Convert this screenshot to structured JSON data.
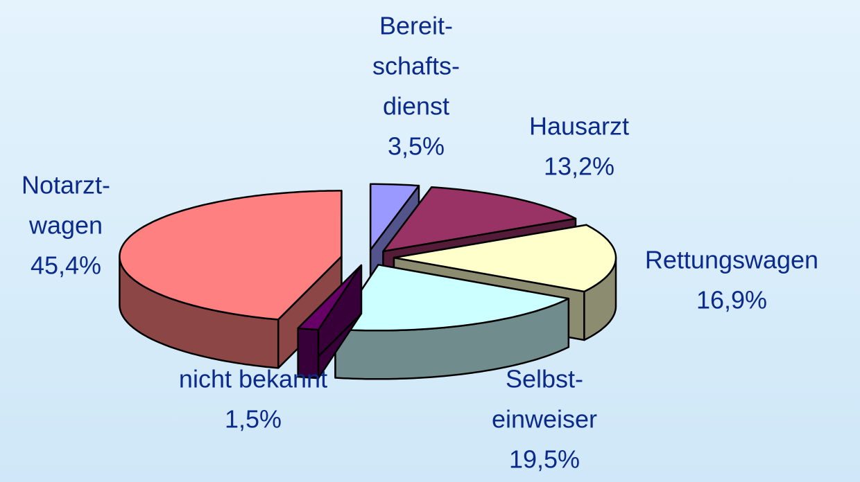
{
  "chart_data": {
    "type": "pie3d",
    "categories": [
      [
        "Bereit-",
        "schafts-",
        "dienst"
      ],
      [
        "Hausarzt"
      ],
      [
        "Rettungswagen"
      ],
      [
        "Selbst-",
        "einweiser"
      ],
      [
        "nicht bekannt"
      ],
      [
        "Notarzt-",
        "wagen"
      ]
    ],
    "values": [
      3.5,
      13.2,
      16.9,
      19.5,
      1.5,
      45.4
    ],
    "value_labels": [
      "3,5%",
      "13,2%",
      "16,9%",
      "19,5%",
      "1,5%",
      "45,4%"
    ],
    "colors": [
      "#9999ff",
      "#993366",
      "#ffffcc",
      "#ccffff",
      "#660066",
      "#ff8080"
    ]
  }
}
